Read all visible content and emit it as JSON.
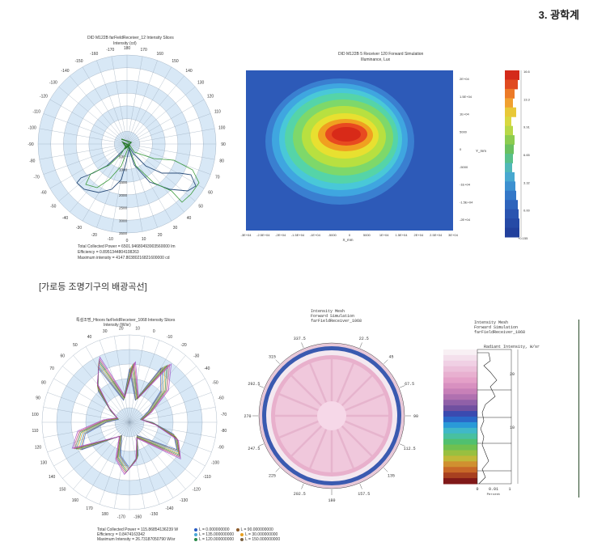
{
  "header": {
    "section": "3. 광학계"
  },
  "caption": "[가로등 조명기구의 배광곡선]",
  "polar1": {
    "title": "DID M122B farFieldReceiver_12 Intensity Slices",
    "subtitle": "Intensity (cd)",
    "angle_labels": [
      "-170",
      "180",
      "170",
      "-160",
      "160",
      "-150",
      "150",
      "-140",
      "140",
      "-130",
      "130",
      "-120",
      "120",
      "-110",
      "110",
      "-100",
      "100",
      "-90",
      "90",
      "-80",
      "80",
      "-70",
      "70",
      "-60",
      "60",
      "-50",
      "50",
      "-40",
      "40",
      "-30",
      "30",
      "-20",
      "20",
      "-10",
      "10",
      "0"
    ],
    "radial_labels": [
      "500",
      "1000",
      "1500",
      "2000",
      "2500",
      "3000",
      "3500"
    ],
    "footer": [
      "Total Collected Power = 6501.94680493903560000 lm",
      "Efficiency = 0.8951344804108263",
      "Maximum intensity = 4147.80380216821600000 cd"
    ]
  },
  "heatmap": {
    "title": "DID M122B 5 Receiver 120 Forward Simulation",
    "subtitle": "Illuminance, Lux",
    "x_ticks": [
      "-3E+04",
      "-2.5E+04",
      "-2E+04",
      "-1.5E+04",
      "-1E+04",
      "-5000",
      "0",
      "5000",
      "1E+04",
      "1.5E+04",
      "2E+04",
      "2.5E+04",
      "3E+04"
    ],
    "y_ticks": [
      "2E+04",
      "1.5E+04",
      "1E+04",
      "5000",
      "0",
      "-5000",
      "-1E+04",
      "-1.5E+04",
      "-2E+04"
    ],
    "x_label": "X_mm",
    "y_label": "Y_mm",
    "colorbar_ticks": [
      "16.6",
      "13.3",
      "9.91",
      "6.65",
      "3.32",
      "0.00"
    ],
    "colorbar_bottom": "+0.155"
  },
  "polar2": {
    "title": "특설조명_Htoors farFieldReceiver_1068 Intensity Slices",
    "subtitle": "Intensity (W/sr)",
    "angle_labels": [
      "30",
      "20",
      "10",
      "0",
      "-10",
      "-20",
      "40",
      "-30",
      "50",
      "-40",
      "60",
      "-50",
      "70",
      "-60",
      "80",
      "-70",
      "90",
      "-80",
      "100",
      "-90",
      "110",
      "-100",
      "120",
      "-110",
      "130",
      "-120",
      "140",
      "-130",
      "150",
      "-140",
      "160",
      "-150",
      "170",
      "-160",
      "180",
      "-170"
    ],
    "footer": [
      "Total Collected Power = 115.86854136239 W",
      "Efficiency = 0.8474163342",
      "Maximum Intensity = 26.73187050790 W/sr"
    ],
    "legend": [
      {
        "label": "L = 0.000000000",
        "color": "#2a5cc4"
      },
      {
        "label": "L = 90.000000000",
        "color": "#8b5a2b"
      },
      {
        "label": "L = 135.000000000",
        "color": "#4aa8d8"
      },
      {
        "label": "L = 30.000000000",
        "color": "#e8a020"
      },
      {
        "label": "L = 120.000000000",
        "color": "#2a8a4a"
      },
      {
        "label": "L = 150.000000000",
        "color": "#7a6040"
      }
    ]
  },
  "radial": {
    "title_lines": [
      "Intensity Mesh",
      "Forward Simulation",
      "farFieldReceiver_1068"
    ],
    "angle_labels": [
      "337.5",
      "22.5",
      "315",
      "45",
      "292.5",
      "67.5",
      "270",
      "90",
      "247.5",
      "112.5",
      "225",
      "135",
      "202.5",
      "157.5",
      "180"
    ]
  },
  "histogram": {
    "title_lines": [
      "Intensity Mesh",
      "Forward Simulation",
      "farFieldReceiver_1068"
    ],
    "axis_title": "Radiant Intensity, W/sr",
    "y_ticks": [
      "20",
      "10"
    ],
    "x_ticks": [
      "0",
      "0.01",
      "1"
    ],
    "x_label": "Percent"
  },
  "colors": {
    "heat_bg": "#2d5ab8",
    "grid_fill": "#d8e8f6"
  }
}
